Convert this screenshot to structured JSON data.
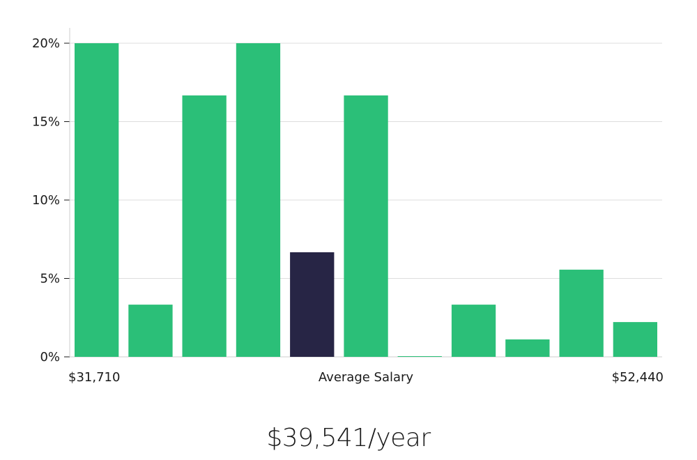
{
  "chart_data": {
    "type": "bar",
    "values": [
      20.0,
      3.33,
      16.67,
      20.0,
      6.67,
      16.67,
      0.0,
      3.33,
      1.11,
      5.56,
      2.22
    ],
    "highlight_index": 4,
    "y_ticks": [
      "0%",
      "5%",
      "10%",
      "15%",
      "20%"
    ],
    "ylim": [
      0,
      20
    ],
    "x_min_label": "$31,710",
    "x_center_label": "Average Salary",
    "x_max_label": "$52,440",
    "grid": true,
    "colors": {
      "bar": "#2bbf78",
      "highlight": "#272545",
      "grid": "#dddddd",
      "axis": "#cccccc"
    }
  },
  "summary": {
    "average_salary": "$39,541/year"
  }
}
